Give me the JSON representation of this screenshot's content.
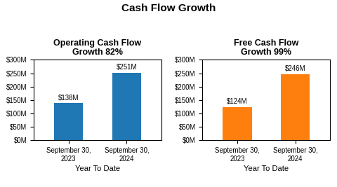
{
  "title": "Cash Flow Growth",
  "chart_data": [
    {
      "type": "bar",
      "title": "Operating Cash Flow\nGrowth 82%",
      "categories": [
        "September 30, 2023",
        "September 30, 2024"
      ],
      "values": [
        138,
        251
      ],
      "value_labels": [
        "$138M",
        "$251M"
      ],
      "data_labels": true,
      "xlabel": "Year To Date",
      "ylim": [
        0,
        300
      ],
      "yticks": [
        {
          "value": 0,
          "label": "$0M"
        },
        {
          "value": 50,
          "label": "$50M"
        },
        {
          "value": 100,
          "label": "$100M"
        },
        {
          "value": 150,
          "label": "$150M"
        },
        {
          "value": 200,
          "label": "$200M"
        },
        {
          "value": 250,
          "label": "$250M"
        },
        {
          "value": 300,
          "label": "$300M"
        }
      ],
      "grid": false
    },
    {
      "type": "bar",
      "title": "Free Cash Flow\nGrowth 99%",
      "categories": [
        "September 30, 2023",
        "September 30, 2024"
      ],
      "values": [
        124,
        246
      ],
      "value_labels": [
        "$124M",
        "$246M"
      ],
      "data_labels": true,
      "xlabel": "Year To Date",
      "ylim": [
        0,
        300
      ],
      "yticks": [
        {
          "value": 0,
          "label": "$0M"
        },
        {
          "value": 50,
          "label": "$50M"
        },
        {
          "value": 100,
          "label": "$100M"
        },
        {
          "value": 150,
          "label": "$150M"
        },
        {
          "value": 200,
          "label": "$200M"
        },
        {
          "value": 250,
          "label": "$250M"
        },
        {
          "value": 300,
          "label": "$300M"
        }
      ],
      "grid": false
    }
  ]
}
